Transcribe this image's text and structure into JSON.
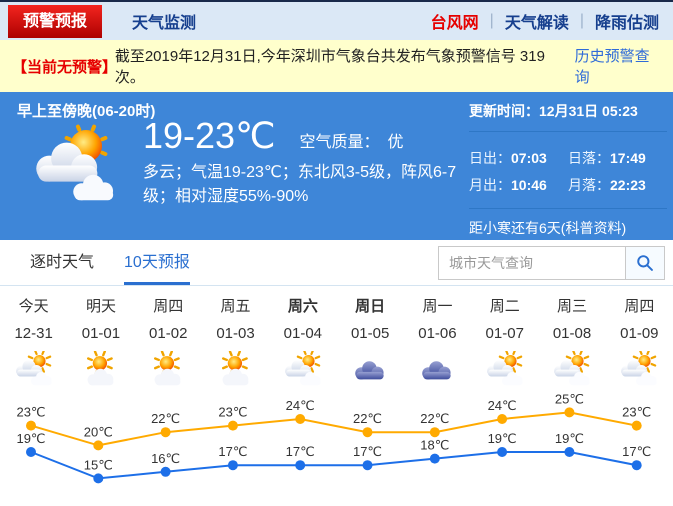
{
  "topnav": {
    "tabs": [
      {
        "label": "预警预报",
        "active": true
      },
      {
        "label": "天气监测",
        "active": false
      }
    ],
    "separator": "|",
    "links": [
      "台风网",
      "天气解读",
      "降雨估测"
    ]
  },
  "notice": {
    "badge": "【当前无预警】",
    "text": "截至2019年12月31日,今年深圳市气象台共发布气象预警信号 319 次。",
    "link": "历史预警查询"
  },
  "current": {
    "period": "早上至傍晚(06-20时)",
    "icon": "sun-behind-clouds",
    "temp_range": "19-23℃",
    "air_quality_label": "空气质量：",
    "air_quality_value": "优",
    "description": "多云；气温19-23℃；东北风3-5级，阵风6-7级；相对湿度55%-90%",
    "update_label": "更新时间：",
    "update_time": "12月31日 05:23",
    "sunrise_label": "日出：",
    "sunrise": "07:03",
    "sunset_label": "日落：",
    "sunset": "17:49",
    "moonrise_label": "月出：",
    "moonrise": "10:46",
    "moonset_label": "月落：",
    "moonset": "22:23",
    "solar_term_note": "距小寒还有6天(科普资料)"
  },
  "tabs": {
    "hourly": "逐时天气",
    "ten_day": "10天预报"
  },
  "search": {
    "placeholder": "城市天气查询",
    "icon": "search-icon"
  },
  "chart_data": {
    "type": "line",
    "categories": [
      "今天",
      "明天",
      "周四",
      "周五",
      "周六",
      "周日",
      "周一",
      "周二",
      "周三",
      "周四"
    ],
    "dates": [
      "12-31",
      "01-01",
      "01-02",
      "01-03",
      "01-04",
      "01-05",
      "01-06",
      "01-07",
      "01-08",
      "01-09"
    ],
    "bold_days": [
      false,
      false,
      false,
      false,
      true,
      true,
      false,
      false,
      false,
      false
    ],
    "icons": [
      "cloud-sun",
      "sun-cloud",
      "sun-cloud",
      "sun-cloud",
      "cloud-sun",
      "overcast",
      "overcast",
      "cloud-sun",
      "cloud-sun",
      "cloud-sun"
    ],
    "series": [
      {
        "name": "high",
        "color": "#ffaa00",
        "values": [
          23,
          20,
          22,
          23,
          24,
          22,
          22,
          24,
          25,
          23
        ]
      },
      {
        "name": "low",
        "color": "#1d6fe8",
        "values": [
          19,
          15,
          16,
          17,
          17,
          17,
          18,
          19,
          19,
          17
        ]
      }
    ],
    "unit": "℃",
    "title": "",
    "xlabel": "",
    "ylabel": "",
    "ylim": [
      13,
      27
    ],
    "grid": false,
    "legend": "none"
  },
  "colors": {
    "panel_blue": "#3e86d8",
    "nav_bg": "#dbe8f6",
    "notice_bg": "#ffffcc",
    "accent_red": "#e60000",
    "accent_blue": "#2a6fd0",
    "high_line": "#ffaa00",
    "low_line": "#1d6fe8"
  }
}
